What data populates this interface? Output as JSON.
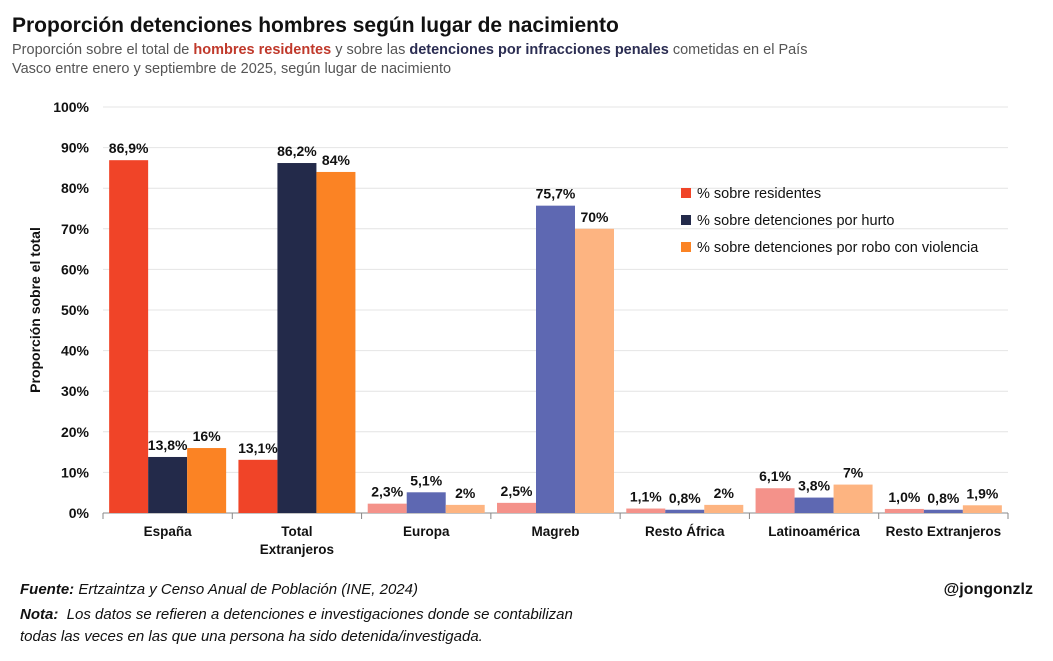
{
  "header": {
    "title": "Proporción detenciones hombres según lugar de nacimiento",
    "subtitle_line1": {
      "t1": "Proporción sobre el total de ",
      "t2": "hombres residentes",
      "t3": " y sobre las ",
      "t4": "detenciones por infracciones penales",
      "t5": " cometidas en el País"
    },
    "subtitle_line2": "Vasco entre enero y septiembre de 2025, según lugar de nacimiento"
  },
  "chart_data": {
    "type": "bar",
    "ylabel": "Proporción sobre el total",
    "ylim": [
      0,
      100
    ],
    "yticks": [
      "0%",
      "10%",
      "20%",
      "30%",
      "40%",
      "50%",
      "60%",
      "70%",
      "80%",
      "90%",
      "100%"
    ],
    "legend_position": "top-right",
    "categories": [
      [
        "España"
      ],
      [
        "Total",
        "Extranjeros"
      ],
      [
        "Europa"
      ],
      [
        "Magreb"
      ],
      [
        "Resto África"
      ],
      [
        "Latinoamérica"
      ],
      [
        "Resto Extranjeros"
      ]
    ],
    "series": [
      {
        "name": "% sobre residentes",
        "color": "#f04428",
        "values": [
          86.9,
          13.1,
          2.3,
          2.5,
          1.1,
          6.1,
          1.0
        ],
        "labels": [
          "86,9%",
          "13,1%",
          "2,3%",
          "2,5%",
          "1,1%",
          "6,1%",
          "1,0%"
        ]
      },
      {
        "name": "% sobre detenciones por hurto",
        "color": "#232a4a",
        "values": [
          13.8,
          86.2,
          5.1,
          75.7,
          0.8,
          3.8,
          0.8
        ],
        "labels": [
          "13,8%",
          "86,2%",
          "5,1%",
          "75,7%",
          "0,8%",
          "3,8%",
          "0,8%"
        ]
      },
      {
        "name": "% sobre detenciones por robo con violencia",
        "color": "#fb8324",
        "values": [
          16,
          84,
          2,
          70,
          2,
          7,
          1.9
        ],
        "labels": [
          "16%",
          "84%",
          "2%",
          "70%",
          "2%",
          "7%",
          "1,9%"
        ]
      }
    ],
    "light_colors": [
      "#f4928a",
      "#5e68b2",
      "#fdb481"
    ]
  },
  "footer": {
    "source_label": "Fuente:",
    "source_text": "Ertzaintza y Censo Anual de Población (INE, 2024)",
    "note_label": "Nota:",
    "note_text1": "Los datos se refieren a detenciones e investigaciones donde se contabilizan",
    "note_text2": "todas las veces en las que una persona ha sido detenida/investigada.",
    "handle": "@jongonzlz"
  }
}
